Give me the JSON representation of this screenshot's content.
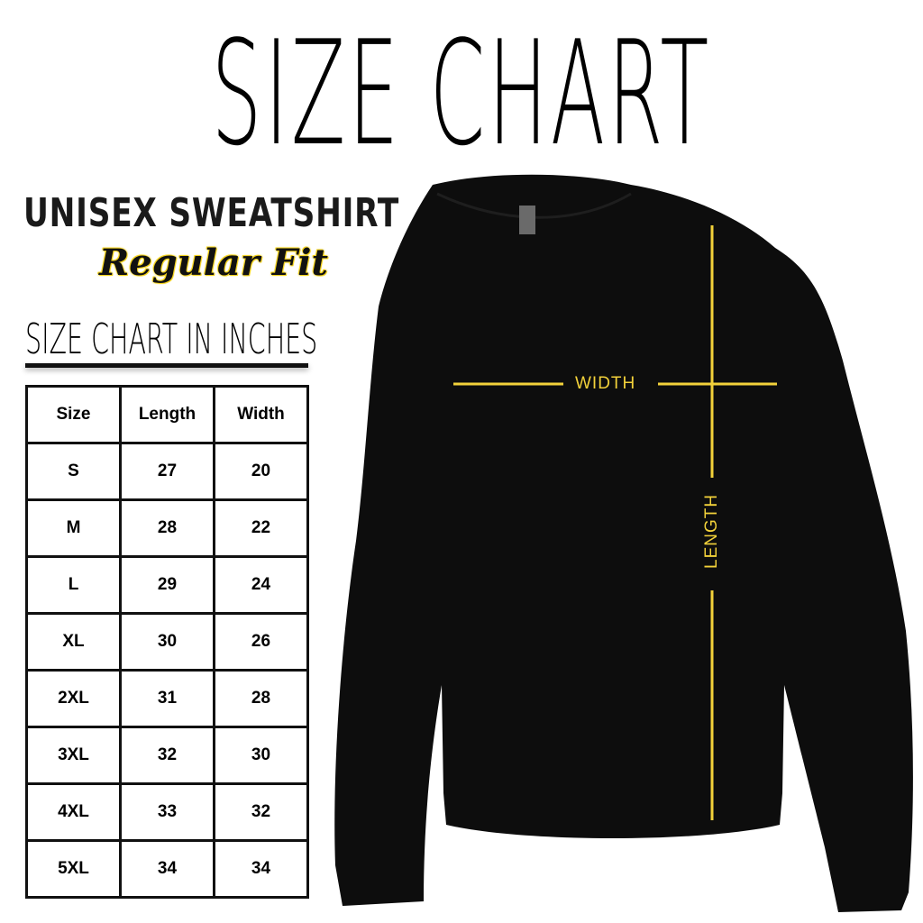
{
  "title": "SIZE CHART",
  "product": "UNISEX SWEATSHIRT",
  "fit": "Regular Fit",
  "subtitle": "SIZE CHART IN INCHES",
  "table": {
    "headers": [
      "Size",
      "Length",
      "Width"
    ],
    "rows": [
      [
        "S",
        "27",
        "20"
      ],
      [
        "M",
        "28",
        "22"
      ],
      [
        "L",
        "29",
        "24"
      ],
      [
        "XL",
        "30",
        "26"
      ],
      [
        "2XL",
        "31",
        "28"
      ],
      [
        "3XL",
        "32",
        "30"
      ],
      [
        "4XL",
        "33",
        "32"
      ],
      [
        "5XL",
        "34",
        "34"
      ]
    ]
  },
  "diagram": {
    "width_label": "WIDTH",
    "length_label": "LENGTH",
    "line_color": "#f2d13a",
    "garment_color": "#0d0d0d"
  }
}
